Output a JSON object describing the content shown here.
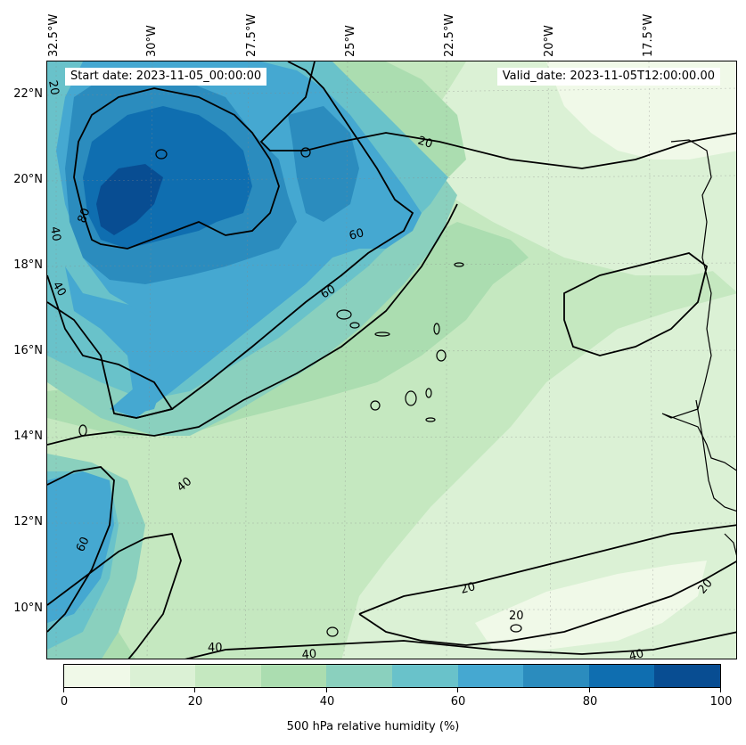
{
  "title_box": {
    "start_date": "Start date: 2023-11-05_00:00:00",
    "valid_date": "Valid_date: 2023-11-05T12:00:00.00"
  },
  "lon_labels": [
    "32.5°W",
    "30°W",
    "27.5°W",
    "25°W",
    "22.5°W",
    "20°W",
    "17.5°W"
  ],
  "lat_labels": [
    "22°N",
    "20°N",
    "18°N",
    "16°N",
    "14°N",
    "12°N",
    "10°N"
  ],
  "contour_labels": [
    "20",
    "20",
    "20",
    "20",
    "40",
    "40",
    "40",
    "40",
    "40",
    "60",
    "60",
    "60",
    "80",
    "20",
    "40"
  ],
  "colorbar": {
    "label": "500 hPa relative humidity (%)",
    "ticks": [
      "0",
      "20",
      "40",
      "60",
      "80",
      "100"
    ],
    "colors": [
      "#f0f9e8",
      "#dbf1d5",
      "#c5e8c0",
      "#abddb0",
      "#8ad0be",
      "#69c2ca",
      "#45a8d1",
      "#2b8cbe",
      "#0f6eb0",
      "#084d92"
    ]
  }
}
